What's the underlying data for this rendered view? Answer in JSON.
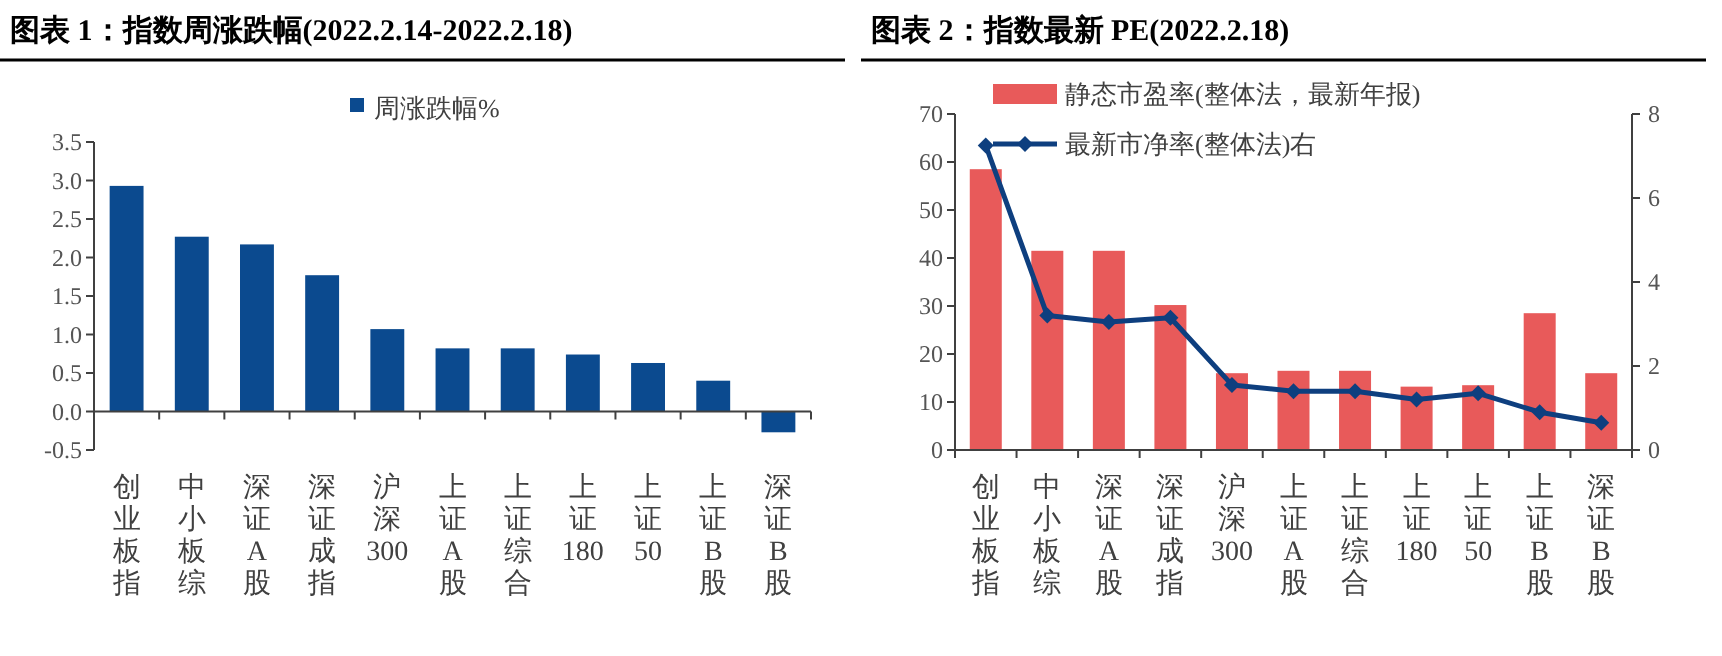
{
  "chart_data": [
    {
      "type": "bar",
      "title": "图表 1：指数周涨跌幅(2022.2.14-2022.2.18)",
      "categories": [
        "创业板指",
        "中小板综",
        "深证A股",
        "深证成指",
        "沪深300",
        "上证A股",
        "上证综合",
        "上证180",
        "上证50",
        "上证B股",
        "深证B股"
      ],
      "series": [
        {
          "name": "周涨跌幅%",
          "color": "#0b4a8f",
          "values": [
            2.93,
            2.27,
            2.17,
            1.77,
            1.07,
            0.82,
            0.82,
            0.74,
            0.63,
            0.4,
            -0.27
          ]
        }
      ],
      "ylim": [
        -0.5,
        3.5
      ],
      "yticks": [
        -0.5,
        {
          "value": 0,
          "label": "0.0"
        },
        0.5,
        {
          "value": 1,
          "label": "1.0"
        },
        1.5,
        {
          "value": 2,
          "label": "2.0"
        },
        2.5,
        {
          "value": 3,
          "label": "3.0"
        },
        3.5
      ],
      "legend": "top",
      "grid": false
    },
    {
      "type": "bar",
      "title": "图表 2：指数最新 PE(2022.2.18)",
      "categories": [
        "创业板指",
        "中小板综",
        "深证A股",
        "深证成指",
        "沪深300",
        "上证A股",
        "上证综合",
        "上证180",
        "上证50",
        "上证B股",
        "深证B股"
      ],
      "series": [
        {
          "name": "静态市盈率(整体法，最新年报)",
          "color": "#e85a5a",
          "values": [
            58.5,
            41.5,
            41.5,
            30.2,
            16,
            16.5,
            16.5,
            13.2,
            13.5,
            28.5,
            16
          ]
        },
        {
          "name": "最新市净率(整体法)右",
          "type": "line",
          "axis": "y2",
          "color": "#0e3f7f",
          "values": [
            7.25,
            3.2,
            3.05,
            3.15,
            1.55,
            1.4,
            1.4,
            1.2,
            1.35,
            0.9,
            0.65
          ]
        }
      ],
      "ylim": [
        0,
        70
      ],
      "yticks": [
        0,
        10,
        20,
        30,
        40,
        50,
        60,
        70
      ],
      "y2lim": [
        0,
        8
      ],
      "y2ticks": [
        0,
        2,
        4,
        6,
        8
      ],
      "legend": "top",
      "marker": "diamond",
      "line_style": "solid",
      "grid": false
    }
  ]
}
